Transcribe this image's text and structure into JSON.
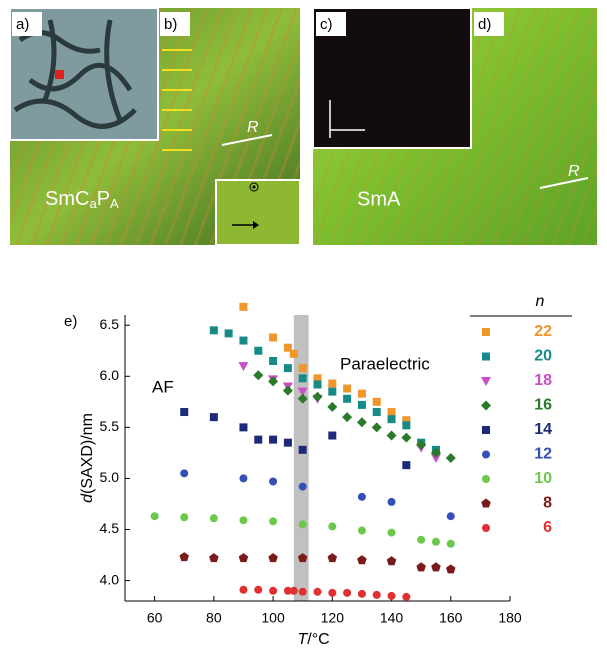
{
  "panels": {
    "a": "a)",
    "b": "b)",
    "c": "c)",
    "d": "d)",
    "left_phase": [
      "SmC",
      "a",
      "P",
      "A"
    ],
    "right_phase": "SmA",
    "r_left": "R",
    "r_right": "R"
  },
  "chart_data": {
    "type": "scatter",
    "panel_label": "e)",
    "x_label": [
      "T",
      "/°C"
    ],
    "y_label": [
      "d",
      "(SAXD)/nm"
    ],
    "annotations": {
      "left": "AF",
      "right": "Paraelectric"
    },
    "legend_title": "n",
    "band": [
      107,
      112
    ],
    "xlim": [
      50,
      180
    ],
    "ylim": [
      3.8,
      6.6
    ],
    "xticks": [
      60,
      80,
      100,
      120,
      140,
      160,
      180
    ],
    "yticks": [
      {
        "value": 4,
        "label": "4.0"
      },
      4.5,
      {
        "value": 5,
        "label": "5.0"
      },
      5.5,
      {
        "value": 6,
        "label": "6.0"
      },
      6.5
    ],
    "series": [
      {
        "name": "22",
        "color": "#f0962a",
        "marker": "square",
        "x": [
          90,
          100,
          105,
          107,
          110,
          115,
          120,
          125,
          130,
          135,
          140,
          145
        ],
        "values": [
          6.68,
          6.38,
          6.28,
          6.22,
          6.08,
          5.98,
          5.93,
          5.88,
          5.83,
          5.75,
          5.65,
          5.57
        ]
      },
      {
        "name": "20",
        "color": "#168a86",
        "marker": "square",
        "x": [
          80,
          85,
          90,
          95,
          100,
          105,
          110,
          115,
          120,
          125,
          130,
          135,
          140,
          145,
          150,
          155
        ],
        "values": [
          6.45,
          6.42,
          6.35,
          6.25,
          6.15,
          6.08,
          5.98,
          5.92,
          5.85,
          5.78,
          5.72,
          5.65,
          5.58,
          5.52,
          5.35,
          5.28
        ]
      },
      {
        "name": "18",
        "color": "#c84fc8",
        "marker": "triangle",
        "x": [
          90,
          100,
          105,
          110,
          115,
          150,
          155
        ],
        "values": [
          6.1,
          5.97,
          5.9,
          5.85,
          5.78,
          5.3,
          5.2
        ]
      },
      {
        "name": "16",
        "color": "#2a7a2a",
        "marker": "diamond",
        "x": [
          95,
          100,
          105,
          110,
          115,
          120,
          125,
          130,
          135,
          140,
          145,
          150,
          155,
          160
        ],
        "values": [
          6.01,
          5.95,
          5.86,
          5.78,
          5.8,
          5.7,
          5.6,
          5.55,
          5.5,
          5.42,
          5.4,
          5.33,
          5.25,
          5.2
        ]
      },
      {
        "name": "14",
        "color": "#1d2a7c",
        "marker": "square",
        "x": [
          70,
          80,
          90,
          95,
          100,
          105,
          110,
          120,
          145
        ],
        "values": [
          5.65,
          5.6,
          5.5,
          5.38,
          5.38,
          5.35,
          5.28,
          5.42,
          5.13
        ]
      },
      {
        "name": "12",
        "color": "#3450b8",
        "marker": "circle",
        "x": [
          70,
          90,
          100,
          110,
          130,
          140,
          160
        ],
        "values": [
          5.05,
          5,
          4.97,
          4.92,
          4.82,
          4.77,
          4.63
        ]
      },
      {
        "name": "10",
        "color": "#6cc84a",
        "marker": "circle",
        "x": [
          60,
          70,
          80,
          90,
          100,
          110,
          120,
          130,
          140,
          150,
          155,
          160
        ],
        "values": [
          4.63,
          4.62,
          4.61,
          4.59,
          4.58,
          4.55,
          4.53,
          4.49,
          4.47,
          4.4,
          4.38,
          4.36
        ]
      },
      {
        "name": "8",
        "color": "#7a1a1a",
        "marker": "pentagon",
        "x": [
          70,
          80,
          90,
          100,
          110,
          120,
          130,
          140,
          150,
          155,
          160
        ],
        "values": [
          4.23,
          4.22,
          4.22,
          4.22,
          4.22,
          4.22,
          4.2,
          4.19,
          4.13,
          4.13,
          4.11
        ]
      },
      {
        "name": "6",
        "color": "#e03030",
        "marker": "circle",
        "x": [
          90,
          95,
          100,
          105,
          107,
          110,
          115,
          120,
          125,
          130,
          135,
          140,
          145
        ],
        "values": [
          3.91,
          3.91,
          3.9,
          3.9,
          3.9,
          3.89,
          3.89,
          3.88,
          3.88,
          3.87,
          3.86,
          3.85,
          3.84
        ]
      }
    ]
  }
}
